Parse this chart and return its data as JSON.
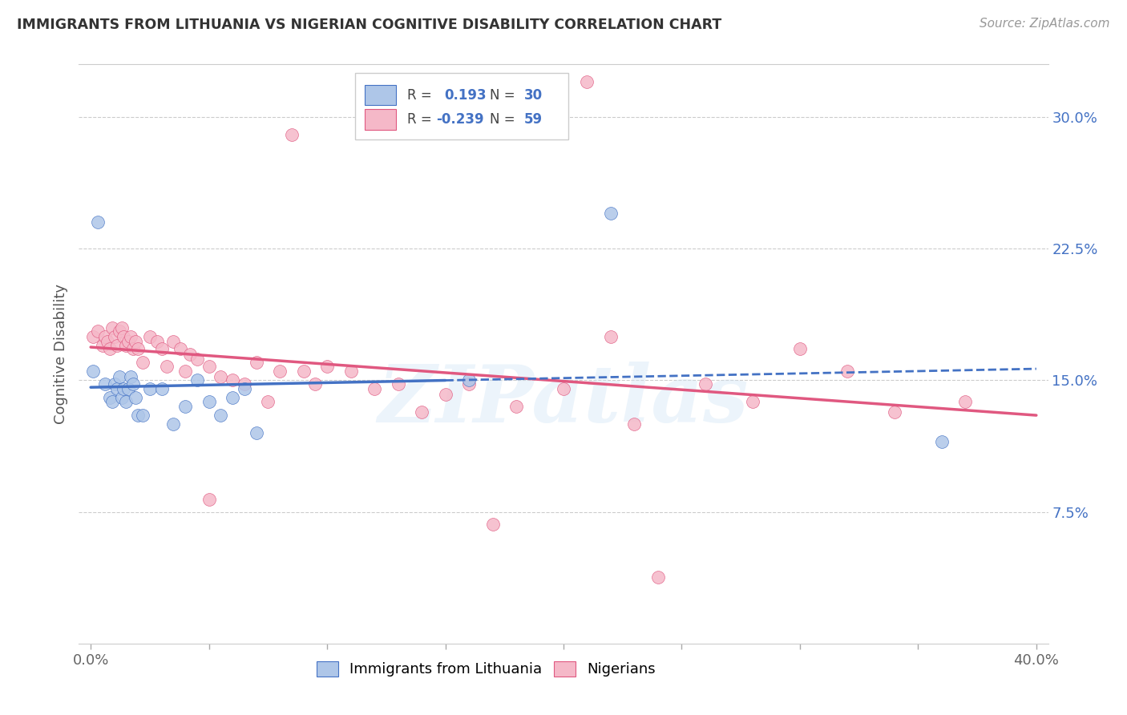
{
  "title": "IMMIGRANTS FROM LITHUANIA VS NIGERIAN COGNITIVE DISABILITY CORRELATION CHART",
  "source": "Source: ZipAtlas.com",
  "ylabel": "Cognitive Disability",
  "blue_R": 0.193,
  "blue_N": 30,
  "pink_R": -0.239,
  "pink_N": 59,
  "blue_color": "#aec6e8",
  "pink_color": "#f5b8c8",
  "blue_line_color": "#4472c4",
  "pink_line_color": "#e05880",
  "legend_label_blue": "Immigrants from Lithuania",
  "legend_label_pink": "Nigerians",
  "watermark": "ZIPatlas",
  "blue_scatter_x": [
    0.001,
    0.003,
    0.006,
    0.008,
    0.009,
    0.01,
    0.011,
    0.012,
    0.013,
    0.014,
    0.015,
    0.016,
    0.017,
    0.018,
    0.019,
    0.02,
    0.022,
    0.025,
    0.03,
    0.035,
    0.04,
    0.045,
    0.05,
    0.055,
    0.06,
    0.065,
    0.07,
    0.16,
    0.22,
    0.36
  ],
  "blue_scatter_y": [
    0.155,
    0.24,
    0.148,
    0.14,
    0.138,
    0.148,
    0.145,
    0.152,
    0.14,
    0.145,
    0.138,
    0.145,
    0.152,
    0.148,
    0.14,
    0.13,
    0.13,
    0.145,
    0.145,
    0.125,
    0.135,
    0.15,
    0.138,
    0.13,
    0.14,
    0.145,
    0.12,
    0.15,
    0.245,
    0.115
  ],
  "pink_scatter_x": [
    0.001,
    0.003,
    0.005,
    0.006,
    0.007,
    0.008,
    0.009,
    0.01,
    0.011,
    0.012,
    0.013,
    0.014,
    0.015,
    0.016,
    0.017,
    0.018,
    0.019,
    0.02,
    0.022,
    0.025,
    0.028,
    0.03,
    0.032,
    0.035,
    0.038,
    0.04,
    0.042,
    0.045,
    0.05,
    0.055,
    0.06,
    0.065,
    0.07,
    0.075,
    0.08,
    0.085,
    0.09,
    0.095,
    0.1,
    0.11,
    0.12,
    0.13,
    0.14,
    0.15,
    0.16,
    0.17,
    0.18,
    0.2,
    0.21,
    0.22,
    0.23,
    0.24,
    0.26,
    0.28,
    0.3,
    0.32,
    0.34,
    0.37,
    0.05
  ],
  "pink_scatter_y": [
    0.175,
    0.178,
    0.17,
    0.175,
    0.172,
    0.168,
    0.18,
    0.175,
    0.17,
    0.178,
    0.18,
    0.175,
    0.17,
    0.172,
    0.175,
    0.168,
    0.172,
    0.168,
    0.16,
    0.175,
    0.172,
    0.168,
    0.158,
    0.172,
    0.168,
    0.155,
    0.165,
    0.162,
    0.158,
    0.152,
    0.15,
    0.148,
    0.16,
    0.138,
    0.155,
    0.29,
    0.155,
    0.148,
    0.158,
    0.155,
    0.145,
    0.148,
    0.132,
    0.142,
    0.148,
    0.068,
    0.135,
    0.145,
    0.32,
    0.175,
    0.125,
    0.038,
    0.148,
    0.138,
    0.168,
    0.155,
    0.132,
    0.138,
    0.082
  ],
  "ylim": [
    0.0,
    0.33
  ],
  "xlim": [
    -0.005,
    0.405
  ],
  "y_tick_pos": [
    0.075,
    0.15,
    0.225,
    0.3
  ],
  "y_tick_labels": [
    "7.5%",
    "15.0%",
    "22.5%",
    "30.0%"
  ],
  "x_tick_positions": [
    0.0,
    0.05,
    0.1,
    0.15,
    0.2,
    0.25,
    0.3,
    0.35,
    0.4
  ],
  "x_tick_labels": [
    "0.0%",
    "",
    "",
    "",
    "",
    "",
    "",
    "",
    "40.0%"
  ]
}
